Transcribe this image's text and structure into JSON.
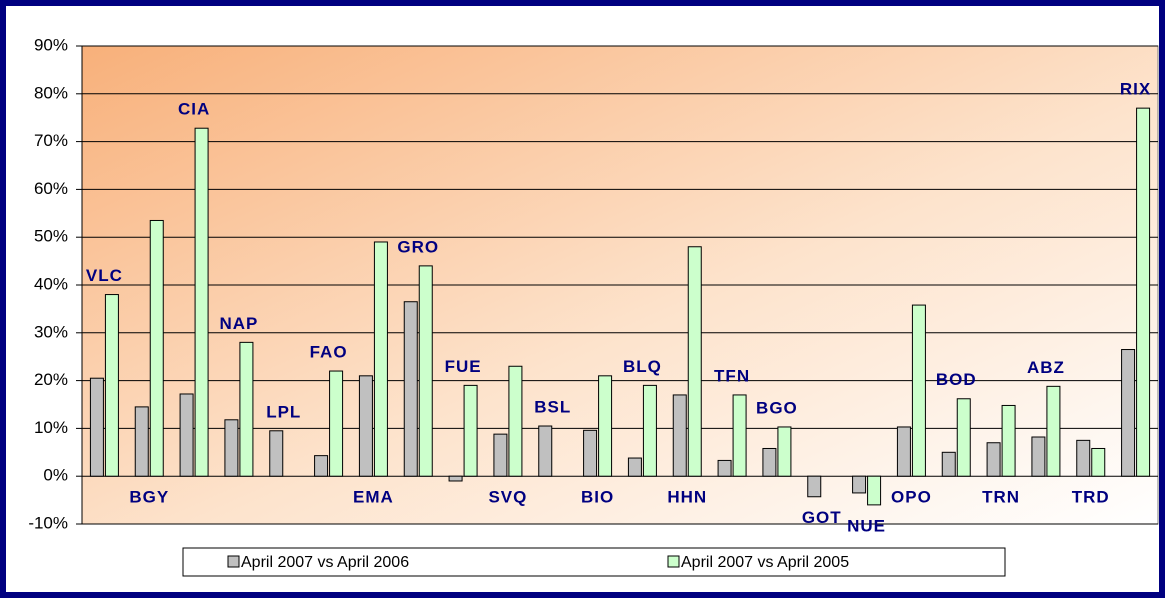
{
  "chart_data": {
    "type": "bar",
    "categories": [
      "VLC",
      "BGY",
      "CIA",
      "NAP",
      "LPL",
      "FAO",
      "EMA",
      "GRO",
      "FUE",
      "SVQ",
      "BSL",
      "BIO",
      "BLQ",
      "HHN",
      "TFN",
      "BGO",
      "GOT",
      "NUE",
      "OPO",
      "BOD",
      "TRN",
      "ABZ",
      "TRD",
      "RIX"
    ],
    "series": [
      {
        "name": "April 2007 vs April 2006",
        "color": "#c0c0c0",
        "values": [
          20.5,
          14.5,
          17.2,
          11.8,
          9.5,
          4.3,
          21,
          36.5,
          -1,
          8.8,
          10.5,
          9.6,
          3.8,
          17,
          3.3,
          5.8,
          -4.3,
          -3.5,
          10.3,
          5,
          7,
          8.2,
          7.5,
          26.5
        ]
      },
      {
        "name": "April 2007 vs April 2005",
        "color": "#ccffcc",
        "values": [
          38,
          53.5,
          72.8,
          28,
          null,
          22,
          49,
          44,
          19,
          23,
          null,
          21,
          19,
          48,
          17,
          10.3,
          null,
          -6,
          35.8,
          16.2,
          14.8,
          18.8,
          5.8,
          77
        ]
      }
    ],
    "ylim": [
      -10,
      90
    ],
    "yticks": [
      {
        "value": -10,
        "label": "-10%"
      },
      {
        "value": 0,
        "label": "0%"
      },
      {
        "value": 10,
        "label": "10%"
      },
      {
        "value": 20,
        "label": "20%"
      },
      {
        "value": 30,
        "label": "30%"
      },
      {
        "value": 40,
        "label": "40%"
      },
      {
        "value": 50,
        "label": "50%"
      },
      {
        "value": 60,
        "label": "60%"
      },
      {
        "value": 70,
        "label": "70%"
      },
      {
        "value": 80,
        "label": "80%"
      },
      {
        "value": 90,
        "label": "90%"
      }
    ],
    "grid": true,
    "legend": "bottom"
  }
}
